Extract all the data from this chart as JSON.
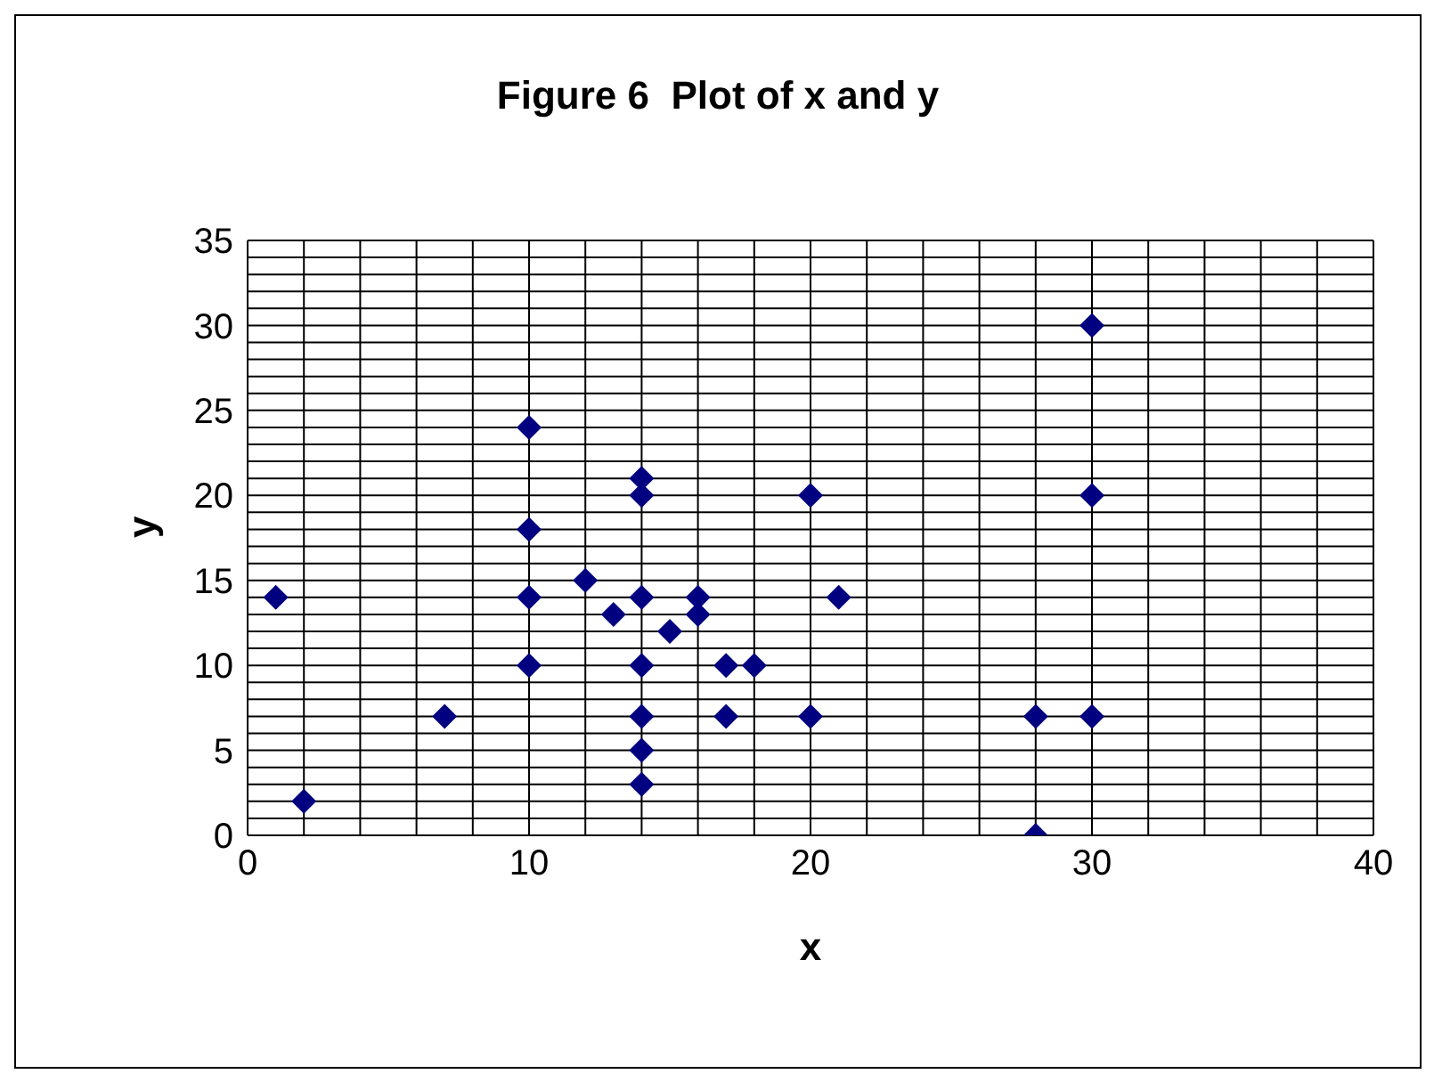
{
  "chart_data": {
    "type": "scatter",
    "title": "Figure 6  Plot of x and y",
    "xlabel": "x",
    "ylabel": "y",
    "x": [
      1,
      2,
      7,
      10,
      10,
      10,
      10,
      12,
      13,
      14,
      14,
      14,
      14,
      14,
      14,
      14,
      15,
      16,
      16,
      17,
      17,
      18,
      20,
      20,
      21,
      28,
      28,
      30,
      30,
      30
    ],
    "series": [
      {
        "color": "#000080",
        "values": [
          14,
          2,
          7,
          24,
          18,
          14,
          10,
          15,
          13,
          21,
          20,
          14,
          10,
          7,
          5,
          3,
          12,
          14,
          13,
          10,
          7,
          10,
          20,
          7,
          14,
          7,
          0,
          30,
          20,
          7
        ]
      }
    ],
    "xlim": [
      0,
      40
    ],
    "xticks": [
      0,
      {
        "value": 2,
        "label": null
      },
      {
        "value": 4,
        "label": null
      },
      {
        "value": 6,
        "label": null
      },
      {
        "value": 8,
        "label": null
      },
      10,
      {
        "value": 12,
        "label": null
      },
      {
        "value": 14,
        "label": null
      },
      {
        "value": 16,
        "label": null
      },
      {
        "value": 18,
        "label": null
      },
      20,
      {
        "value": 22,
        "label": null
      },
      {
        "value": 24,
        "label": null
      },
      {
        "value": 26,
        "label": null
      },
      {
        "value": 28,
        "label": null
      },
      30,
      {
        "value": 32,
        "label": null
      },
      {
        "value": 34,
        "label": null
      },
      {
        "value": 36,
        "label": null
      },
      {
        "value": 38,
        "label": null
      },
      40
    ],
    "ylim": [
      0,
      35
    ],
    "yticks": [
      0,
      {
        "value": 1,
        "label": null
      },
      {
        "value": 2,
        "label": null
      },
      {
        "value": 3,
        "label": null
      },
      {
        "value": 4,
        "label": null
      },
      5,
      {
        "value": 6,
        "label": null
      },
      {
        "value": 7,
        "label": null
      },
      {
        "value": 8,
        "label": null
      },
      {
        "value": 9,
        "label": null
      },
      10,
      {
        "value": 11,
        "label": null
      },
      {
        "value": 12,
        "label": null
      },
      {
        "value": 13,
        "label": null
      },
      {
        "value": 14,
        "label": null
      },
      15,
      {
        "value": 16,
        "label": null
      },
      {
        "value": 17,
        "label": null
      },
      {
        "value": 18,
        "label": null
      },
      {
        "value": 19,
        "label": null
      },
      20,
      {
        "value": 21,
        "label": null
      },
      {
        "value": 22,
        "label": null
      },
      {
        "value": 23,
        "label": null
      },
      {
        "value": 24,
        "label": null
      },
      25,
      {
        "value": 26,
        "label": null
      },
      {
        "value": 27,
        "label": null
      },
      {
        "value": 28,
        "label": null
      },
      {
        "value": 29,
        "label": null
      },
      30,
      {
        "value": 31,
        "label": null
      },
      {
        "value": 32,
        "label": null
      },
      {
        "value": 33,
        "label": null
      },
      {
        "value": 34,
        "label": null
      },
      35
    ],
    "grid": true,
    "marker": "diamond"
  }
}
